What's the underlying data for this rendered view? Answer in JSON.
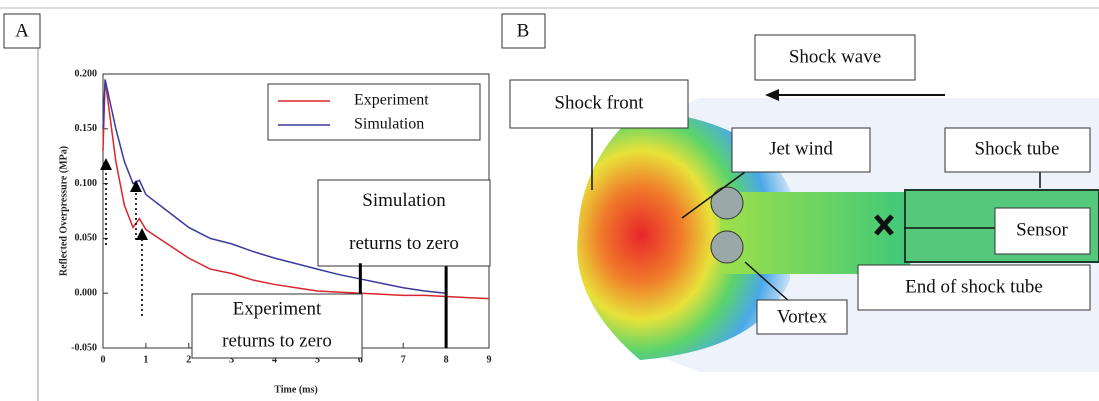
{
  "chart_data": {
    "type": "line",
    "panel_label": "A",
    "x_label": "Time (ms)",
    "y_label": "Reflected Overpressure (MPa)",
    "x": [
      0,
      0.05,
      0.3,
      0.5,
      0.7,
      0.85,
      1,
      1.5,
      2,
      2.5,
      3,
      3.5,
      4,
      4.5,
      5,
      5.5,
      6,
      6.5,
      7,
      7.5,
      8,
      8.5,
      9
    ],
    "series": [
      {
        "name": "Experiment",
        "color": "#d9262b",
        "values": [
          0.13,
          0.195,
          0.12,
          0.08,
          0.06,
          0.068,
          0.058,
          0.045,
          0.032,
          0.022,
          0.018,
          0.012,
          0.008,
          0.005,
          0.002,
          0.001,
          0,
          -0.001,
          -0.002,
          -0.002,
          -0.003,
          -0.004,
          -0.005
        ]
      },
      {
        "name": "Simulation",
        "color": "#3a3a9e",
        "values": [
          0.15,
          0.195,
          0.15,
          0.12,
          0.1,
          0.103,
          0.09,
          0.075,
          0.06,
          0.05,
          0.045,
          0.038,
          0.032,
          0.027,
          0.022,
          0.017,
          0.013,
          0.009,
          0.005,
          0.002,
          0,
          null,
          null
        ]
      }
    ],
    "xlim": [
      0,
      9
    ],
    "xticks": [
      0,
      1,
      2,
      3,
      4,
      5,
      6,
      7,
      8,
      9
    ],
    "ylim": [
      -0.05,
      0.2
    ],
    "yticks": [
      {
        "value": -0.05,
        "label": "-0.050"
      },
      {
        "value": 0,
        "label": "0.000"
      },
      {
        "value": 0.05,
        "label": "0.050"
      },
      {
        "value": 0.1,
        "label": "0.100"
      },
      {
        "value": 0.15,
        "label": "0.150"
      },
      {
        "value": 0.2,
        "label": "0.200"
      }
    ],
    "annotations": [
      {
        "lines": [
          "Simulation",
          "returns to zero"
        ],
        "x": 8
      },
      {
        "lines": [
          "Experiment",
          "returns to zero"
        ],
        "x": 6
      }
    ]
  },
  "panel_b": {
    "label": "B",
    "shock_wave": "Shock wave",
    "shock_front": "Shock front",
    "jet_wind": "Jet wind",
    "shock_tube": "Shock tube",
    "sensor": "Sensor",
    "end_of_shock_tube": "End of shock tube",
    "vortex": "Vortex"
  }
}
